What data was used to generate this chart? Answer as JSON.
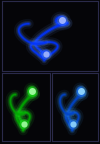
{
  "bg_color": "#050508",
  "panel_bg": "#050508",
  "border_color": "#2a2a4a",
  "top_color": "#0033ff",
  "top_glow": "#6699ff",
  "top_bright": "#aabbff",
  "green_color": "#00aa00",
  "green_glow": "#33ff33",
  "green_bright": "#aaffaa",
  "blue2_color": "#0044cc",
  "blue2_glow": "#44aaff",
  "blue2_bright": "#99ddff"
}
